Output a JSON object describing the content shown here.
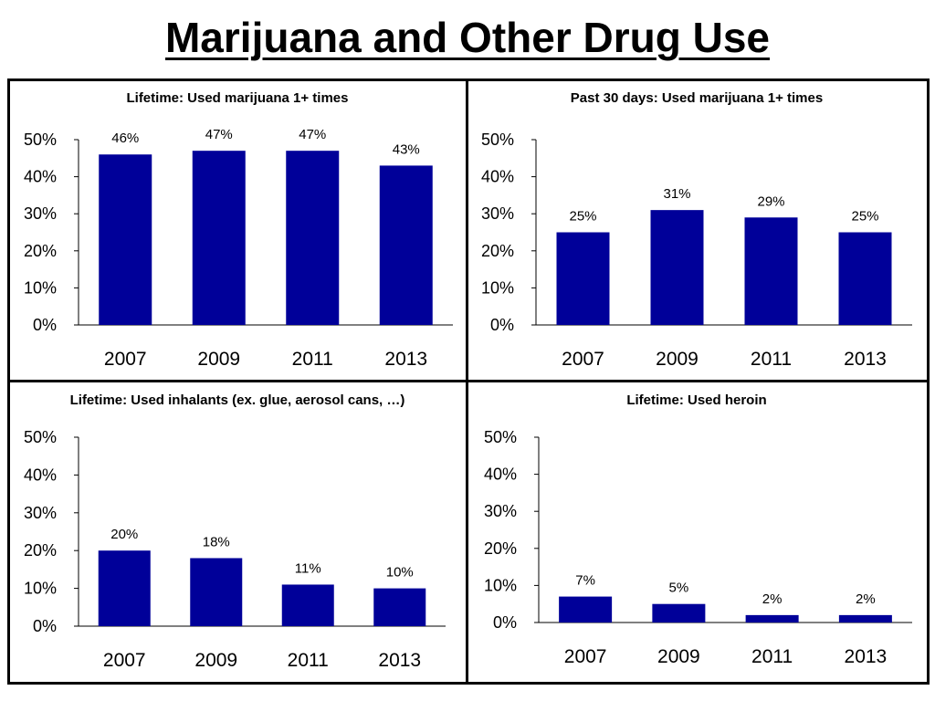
{
  "title": "Marijuana and Other Drug Use",
  "colors": {
    "bar": "#000099",
    "axis": "#000000",
    "border": "#000000"
  },
  "chart_data": [
    {
      "type": "bar",
      "title": "Lifetime: Used marijuana 1+ times",
      "categories": [
        "2007",
        "2009",
        "2011",
        "2013"
      ],
      "values": [
        46,
        47,
        47,
        43
      ],
      "data_labels": [
        "46%",
        "47%",
        "47%",
        "43%"
      ],
      "ylim": [
        0,
        50
      ],
      "yticks": [
        "0%",
        "10%",
        "20%",
        "30%",
        "40%",
        "50%"
      ],
      "grid": false,
      "xlabel": "",
      "ylabel": ""
    },
    {
      "type": "bar",
      "title": "Past 30 days: Used marijuana 1+ times",
      "categories": [
        "2007",
        "2009",
        "2011",
        "2013"
      ],
      "values": [
        25,
        31,
        29,
        25
      ],
      "data_labels": [
        "25%",
        "31%",
        "29%",
        "25%"
      ],
      "ylim": [
        0,
        50
      ],
      "yticks": [
        "0%",
        "10%",
        "20%",
        "30%",
        "40%",
        "50%"
      ],
      "grid": false,
      "xlabel": "",
      "ylabel": ""
    },
    {
      "type": "bar",
      "title": "Lifetime: Used inhalants (ex. glue, aerosol cans, …)",
      "categories": [
        "2007",
        "2009",
        "2011",
        "2013"
      ],
      "values": [
        20,
        18,
        11,
        10
      ],
      "data_labels": [
        "20%",
        "18%",
        "11%",
        "10%"
      ],
      "ylim": [
        0,
        50
      ],
      "yticks": [
        "0%",
        "10%",
        "20%",
        "30%",
        "40%",
        "50%"
      ],
      "grid": false,
      "xlabel": "",
      "ylabel": ""
    },
    {
      "type": "bar",
      "title": "Lifetime: Used heroin",
      "categories": [
        "2007",
        "2009",
        "2011",
        "2013"
      ],
      "values": [
        7,
        5,
        2,
        2
      ],
      "data_labels": [
        "7%",
        "5%",
        "2%",
        "2%"
      ],
      "ylim": [
        0,
        50
      ],
      "yticks": [
        "0%",
        "10%",
        "20%",
        "30%",
        "40%",
        "50%"
      ],
      "grid": false,
      "xlabel": "",
      "ylabel": ""
    }
  ]
}
